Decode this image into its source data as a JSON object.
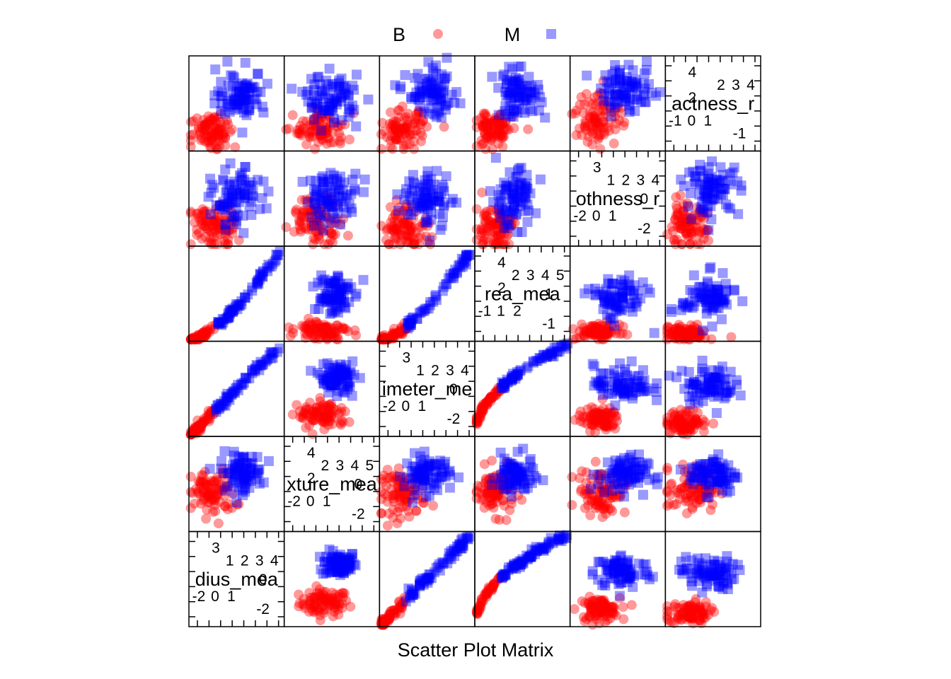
{
  "legend": {
    "placement": "top",
    "items": [
      {
        "label": "B",
        "color": "#ff0000",
        "shape": "circle"
      },
      {
        "label": "M",
        "color": "#0000ff",
        "shape": "square"
      }
    ]
  },
  "xlabel": "Scatter Plot Matrix",
  "chart_data": {
    "type": "scatter",
    "title": "",
    "xlabel": "Scatter Plot Matrix",
    "variables": [
      "radius_mean",
      "texture_mean",
      "perimeter_mean",
      "area_mean",
      "smoothness_mean",
      "compactness_mean"
    ],
    "groups": [
      "B",
      "M"
    ],
    "diagonal": [
      {
        "name": "radius_mean",
        "label": "dius_mea",
        "upper_ticks": [
          "1",
          "2",
          "3",
          "4"
        ],
        "upper_left": [
          "3"
        ],
        "lower_ticks": [
          "-2",
          "0",
          "1"
        ],
        "lower_right": [
          "0",
          "-2"
        ],
        "range": [
          -2,
          4
        ]
      },
      {
        "name": "texture_mean",
        "label": "xture_mea",
        "upper_ticks": [
          "2",
          "3",
          "4",
          "5"
        ],
        "upper_left": [
          "4",
          "2"
        ],
        "lower_ticks": [
          "-2",
          "0",
          "1"
        ],
        "lower_right": [
          "0",
          "-2"
        ],
        "range": [
          -2,
          5
        ]
      },
      {
        "name": "perimeter_mean",
        "label": "imeter_me",
        "upper_ticks": [
          "1",
          "2",
          "3",
          "4"
        ],
        "upper_left": [
          "3"
        ],
        "lower_ticks": [
          "-2",
          "0",
          "1"
        ],
        "lower_right": [
          "0",
          "-2"
        ],
        "range": [
          -2,
          4
        ]
      },
      {
        "name": "area_mean",
        "label": "rea_mea",
        "upper_ticks": [
          "2",
          "3",
          "4",
          "5"
        ],
        "upper_left": [
          "4",
          "2"
        ],
        "lower_ticks": [
          "-1",
          "1",
          "2"
        ],
        "lower_right": [
          "1",
          "-1"
        ],
        "range": [
          -1,
          5
        ]
      },
      {
        "name": "smoothness_mean",
        "label": "othness_r",
        "upper_ticks": [
          "1",
          "2",
          "3",
          "4"
        ],
        "upper_left": [
          "3"
        ],
        "lower_ticks": [
          "-2",
          "0",
          "1"
        ],
        "lower_right": [
          "0",
          "-2"
        ],
        "range": [
          -2,
          4
        ]
      },
      {
        "name": "compactness_mean",
        "label": "actness_r",
        "upper_ticks": [
          "2",
          "3",
          "4"
        ],
        "upper_left": [
          "4",
          "2"
        ],
        "lower_ticks": [
          "-1",
          "0",
          "1"
        ],
        "lower_right": [
          "-1"
        ],
        "range": [
          -1,
          4
        ]
      }
    ],
    "panels": [
      {
        "row": 0,
        "col": 1,
        "kind": "cloud",
        "b": [
          0.42,
          0.25,
          0.13,
          0.07
        ],
        "m": [
          0.58,
          0.66,
          0.09,
          0.07
        ]
      },
      {
        "row": 0,
        "col": 2,
        "kind": "linear",
        "a": 0.02,
        "b": 0.98,
        "noise": 0.025
      },
      {
        "row": 0,
        "col": 3,
        "kind": "curve",
        "a": 0.02,
        "b": 0.98,
        "noise": 0.02
      },
      {
        "row": 0,
        "col": 4,
        "kind": "cloud",
        "b": [
          0.3,
          0.18,
          0.11,
          0.06
        ],
        "m": [
          0.55,
          0.58,
          0.15,
          0.09
        ]
      },
      {
        "row": 0,
        "col": 5,
        "kind": "cloud",
        "b": [
          0.25,
          0.15,
          0.11,
          0.06
        ],
        "m": [
          0.45,
          0.56,
          0.14,
          0.09
        ]
      },
      {
        "row": 1,
        "col": 0,
        "kind": "cloud",
        "b": [
          0.25,
          0.4,
          0.12,
          0.12
        ],
        "m": [
          0.55,
          0.62,
          0.11,
          0.1
        ]
      },
      {
        "row": 1,
        "col": 2,
        "kind": "cloud",
        "b": [
          0.25,
          0.4,
          0.12,
          0.12
        ],
        "m": [
          0.5,
          0.6,
          0.12,
          0.1
        ]
      },
      {
        "row": 1,
        "col": 3,
        "kind": "cloud",
        "b": [
          0.22,
          0.42,
          0.1,
          0.12
        ],
        "m": [
          0.42,
          0.58,
          0.1,
          0.1
        ]
      },
      {
        "row": 1,
        "col": 4,
        "kind": "cloud",
        "b": [
          0.33,
          0.42,
          0.13,
          0.12
        ],
        "m": [
          0.55,
          0.6,
          0.13,
          0.1
        ]
      },
      {
        "row": 1,
        "col": 5,
        "kind": "cloud",
        "b": [
          0.3,
          0.45,
          0.13,
          0.12
        ],
        "m": [
          0.5,
          0.6,
          0.13,
          0.1
        ]
      },
      {
        "row": 2,
        "col": 0,
        "kind": "linear",
        "a": 0.02,
        "b": 0.98,
        "noise": 0.025
      },
      {
        "row": 2,
        "col": 1,
        "kind": "cloud",
        "b": [
          0.4,
          0.22,
          0.13,
          0.07
        ],
        "m": [
          0.55,
          0.62,
          0.09,
          0.08
        ]
      },
      {
        "row": 2,
        "col": 3,
        "kind": "curve",
        "a": 0.02,
        "b": 0.98,
        "noise": 0.02
      },
      {
        "row": 2,
        "col": 4,
        "kind": "cloud",
        "b": [
          0.3,
          0.18,
          0.11,
          0.06
        ],
        "m": [
          0.55,
          0.55,
          0.15,
          0.1
        ]
      },
      {
        "row": 2,
        "col": 5,
        "kind": "cloud",
        "b": [
          0.22,
          0.15,
          0.11,
          0.06
        ],
        "m": [
          0.45,
          0.55,
          0.14,
          0.1
        ]
      },
      {
        "row": 3,
        "col": 0,
        "kind": "power",
        "a": 0.02,
        "b": 0.98,
        "noise": 0.02
      },
      {
        "row": 3,
        "col": 1,
        "kind": "cloud",
        "b": [
          0.4,
          0.12,
          0.13,
          0.05
        ],
        "m": [
          0.5,
          0.5,
          0.1,
          0.12
        ]
      },
      {
        "row": 3,
        "col": 2,
        "kind": "power",
        "a": 0.02,
        "b": 0.98,
        "noise": 0.02
      },
      {
        "row": 3,
        "col": 4,
        "kind": "cloud",
        "b": [
          0.3,
          0.1,
          0.11,
          0.04
        ],
        "m": [
          0.5,
          0.45,
          0.15,
          0.12
        ]
      },
      {
        "row": 3,
        "col": 5,
        "kind": "cloud",
        "b": [
          0.22,
          0.08,
          0.11,
          0.04
        ],
        "m": [
          0.45,
          0.45,
          0.14,
          0.12
        ]
      },
      {
        "row": 4,
        "col": 0,
        "kind": "cloud",
        "b": [
          0.25,
          0.2,
          0.12,
          0.12
        ],
        "m": [
          0.5,
          0.5,
          0.13,
          0.15
        ]
      },
      {
        "row": 4,
        "col": 1,
        "kind": "cloud",
        "b": [
          0.35,
          0.28,
          0.14,
          0.12
        ],
        "m": [
          0.5,
          0.52,
          0.14,
          0.13
        ]
      },
      {
        "row": 4,
        "col": 2,
        "kind": "cloud",
        "b": [
          0.28,
          0.2,
          0.12,
          0.12
        ],
        "m": [
          0.5,
          0.5,
          0.13,
          0.15
        ]
      },
      {
        "row": 4,
        "col": 3,
        "kind": "cloud",
        "b": [
          0.2,
          0.2,
          0.1,
          0.12
        ],
        "m": [
          0.4,
          0.5,
          0.12,
          0.15
        ]
      },
      {
        "row": 4,
        "col": 5,
        "kind": "cloud",
        "b": [
          0.22,
          0.2,
          0.11,
          0.12
        ],
        "m": [
          0.5,
          0.6,
          0.14,
          0.13
        ]
      },
      {
        "row": 5,
        "col": 0,
        "kind": "cloud",
        "b": [
          0.25,
          0.22,
          0.12,
          0.1
        ],
        "m": [
          0.55,
          0.6,
          0.13,
          0.12
        ]
      },
      {
        "row": 5,
        "col": 1,
        "kind": "cloud",
        "b": [
          0.38,
          0.22,
          0.14,
          0.1
        ],
        "m": [
          0.5,
          0.55,
          0.14,
          0.12
        ]
      },
      {
        "row": 5,
        "col": 2,
        "kind": "cloud",
        "b": [
          0.25,
          0.22,
          0.12,
          0.1
        ],
        "m": [
          0.55,
          0.6,
          0.13,
          0.12
        ]
      },
      {
        "row": 5,
        "col": 3,
        "kind": "cloud",
        "b": [
          0.2,
          0.22,
          0.1,
          0.1
        ],
        "m": [
          0.45,
          0.6,
          0.12,
          0.12
        ]
      },
      {
        "row": 5,
        "col": 4,
        "kind": "cloud",
        "b": [
          0.3,
          0.35,
          0.12,
          0.15
        ],
        "m": [
          0.6,
          0.65,
          0.14,
          0.12
        ]
      }
    ]
  }
}
